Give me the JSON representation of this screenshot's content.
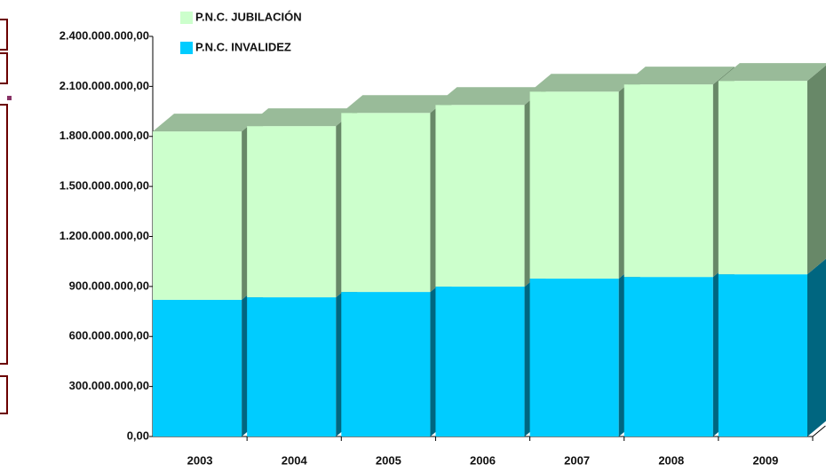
{
  "chart_data": {
    "type": "bar3d_stacked",
    "categories": [
      "2003",
      "2004",
      "2005",
      "2006",
      "2007",
      "2008",
      "2009"
    ],
    "series": [
      {
        "name": "P.N.C. INVALIDEZ",
        "color": "#00ccff",
        "side_color": "#006680",
        "top_color": "#33aacc",
        "values": [
          820000000,
          835000000,
          867000000,
          899000000,
          947000000,
          957000000,
          973000000
        ]
      },
      {
        "name": "P.N.C. JUBILACIÓN",
        "color": "#ccffcc",
        "side_color": "#688868",
        "top_color": "#99bb99",
        "values": [
          1010000000,
          1027000000,
          1074000000,
          1090000000,
          1122000000,
          1155000000,
          1160000000
        ]
      }
    ],
    "ylim": [
      0,
      2400000000
    ],
    "yticks": [
      {
        "value": 0,
        "label": "0,00"
      },
      {
        "value": 300000000,
        "label": "300.000.000,00"
      },
      {
        "value": 600000000,
        "label": "600.000.000,00"
      },
      {
        "value": 900000000,
        "label": "900.000.000,00"
      },
      {
        "value": 1200000000,
        "label": "1.200.000.000,00"
      },
      {
        "value": 1500000000,
        "label": "1.500.000.000,00"
      },
      {
        "value": 1800000000,
        "label": "1.800.000.000,00"
      },
      {
        "value": 2100000000,
        "label": "2.100.000.000,00"
      },
      {
        "value": 2400000000,
        "label": "2.400.000.000,00"
      }
    ]
  }
}
